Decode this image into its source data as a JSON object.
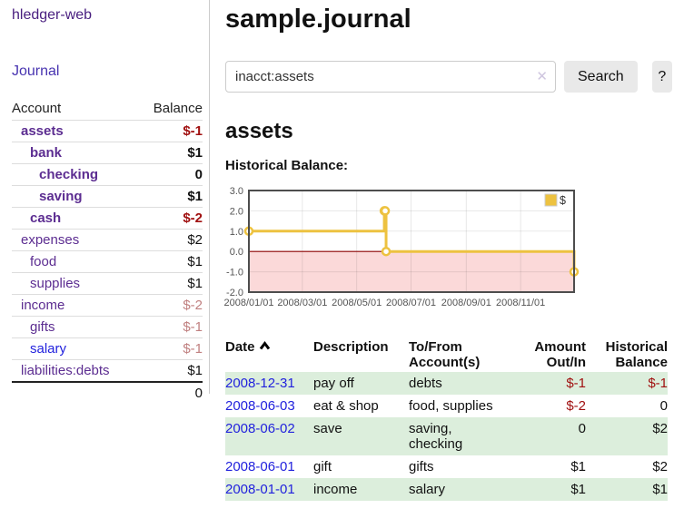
{
  "colors": {
    "accent_purple": "#5c2d91",
    "link_blue": "#2222dd",
    "negative_strong": "#a01010",
    "negative_soft": "#c08080",
    "row_stripe_green": "#dceedc",
    "chart_line_gold": "#edc240",
    "chart_negative_fill": "#fbd9d9",
    "chart_zero_line": "#8b0000"
  },
  "sidebar": {
    "brand": "hledger-web",
    "nav": {
      "journal": "Journal"
    },
    "accounts_table": {
      "headers": {
        "account": "Account",
        "balance": "Balance"
      },
      "rows": [
        {
          "name": "assets",
          "balance": "$-1"
        },
        {
          "name": "bank",
          "balance": "$1"
        },
        {
          "name": "checking",
          "balance": "0"
        },
        {
          "name": "saving",
          "balance": "$1"
        },
        {
          "name": "cash",
          "balance": "$-2"
        },
        {
          "name": "expenses",
          "balance": "$2"
        },
        {
          "name": "food",
          "balance": "$1"
        },
        {
          "name": "supplies",
          "balance": "$1"
        },
        {
          "name": "income",
          "balance": "$-2"
        },
        {
          "name": "gifts",
          "balance": "$-1"
        },
        {
          "name": "salary",
          "balance": "$-1"
        },
        {
          "name": "liabilities:debts",
          "balance": "$1"
        }
      ],
      "total": "0"
    }
  },
  "header": {
    "title": "sample.journal"
  },
  "search": {
    "value": "inacct:assets",
    "clear_icon": "✕",
    "button_label": "Search",
    "help_label": "?"
  },
  "account_view": {
    "title": "assets",
    "chart_label": "Historical Balance:"
  },
  "chart_data": {
    "type": "line",
    "style": "steps",
    "title": "Historical Balance",
    "series": [
      {
        "name": "$",
        "color": "#edc240",
        "points": [
          [
            "2008-01-01",
            1
          ],
          [
            "2008-06-01",
            2
          ],
          [
            "2008-06-02",
            2
          ],
          [
            "2008-06-03",
            0
          ],
          [
            "2008-12-31",
            -1
          ]
        ]
      }
    ],
    "xlim": [
      "2008-01-01",
      "2008-12-31"
    ],
    "ylim": [
      -2,
      3
    ],
    "x_ticks": [
      "2008/01/01",
      "2008/03/01",
      "2008/05/01",
      "2008/07/01",
      "2008/09/01",
      "2008/11/01"
    ],
    "y_ticks": [
      3,
      2,
      1,
      0,
      -1,
      -2
    ],
    "grid": true,
    "negative_region_fill": "#fbd9d9",
    "zero_line_color": "#8b0000",
    "legend": {
      "position": "top-right",
      "label": "$"
    }
  },
  "transactions": {
    "headers": {
      "date": "Date",
      "description": "Description",
      "accounts": "To/From\nAccount(s)",
      "amount": "Amount\nOut/In",
      "balance": "Historical\nBalance"
    },
    "rows": [
      {
        "date": "2008-12-31",
        "description": "pay off",
        "accounts": "debts",
        "amount": "$-1",
        "balance": "$-1"
      },
      {
        "date": "2008-06-03",
        "description": "eat & shop",
        "accounts": "food, supplies",
        "amount": "$-2",
        "balance": "0"
      },
      {
        "date": "2008-06-02",
        "description": "save",
        "accounts": "saving,\nchecking",
        "amount": "0",
        "balance": "$2"
      },
      {
        "date": "2008-06-01",
        "description": "gift",
        "accounts": "gifts",
        "amount": "$1",
        "balance": "$2"
      },
      {
        "date": "2008-01-01",
        "description": "income",
        "accounts": "salary",
        "amount": "$1",
        "balance": "$1"
      }
    ]
  }
}
